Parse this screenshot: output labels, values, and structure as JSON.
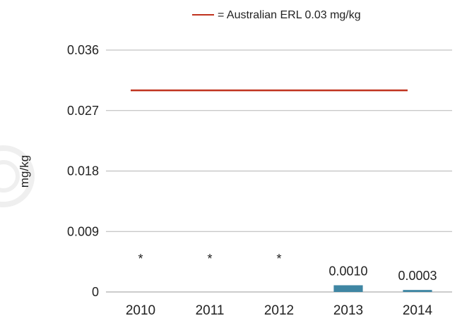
{
  "chart_data": {
    "type": "bar",
    "categories": [
      "2010",
      "2011",
      "2012",
      "2013",
      "2014"
    ],
    "values": [
      null,
      null,
      null,
      0.001,
      0.0003
    ],
    "value_labels": [
      "*",
      "*",
      "*",
      "0.0010",
      "0.0003"
    ],
    "ylabel": "mg/kg",
    "xlabel": "",
    "title": "",
    "ylim": [
      0,
      0.036
    ],
    "yticks": [
      0,
      0.009,
      0.018,
      0.027,
      0.036
    ],
    "ytick_labels": [
      "0",
      "0.009",
      "0.018",
      "0.027",
      "0.036"
    ],
    "grid": true,
    "legend_position": "top-right",
    "reference_line": {
      "value": 0.03,
      "label": "= Australian ERL 0.03 mg/kg",
      "color": "#c0321e"
    },
    "bar_color": "#3f86a3"
  }
}
